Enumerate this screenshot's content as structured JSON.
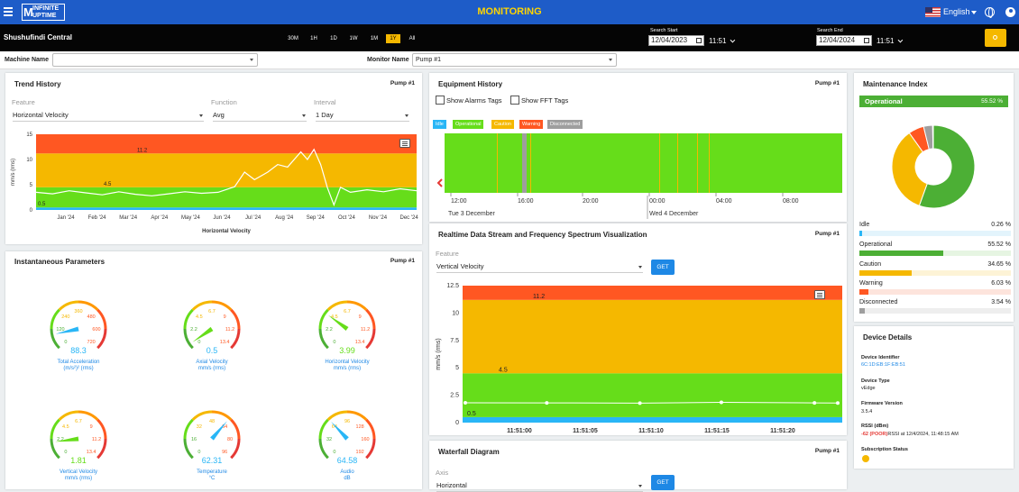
{
  "header": {
    "logo_line1": "INFINITE",
    "logo_line2": "UPTIME",
    "title": "MONITORING",
    "language": "English"
  },
  "toolbar": {
    "site": "Shushufindi Central",
    "ranges": [
      "30M",
      "1H",
      "1D",
      "1W",
      "1M",
      "1Y",
      "All"
    ],
    "active_range": "1Y",
    "search_start_label": "Search Start",
    "search_start_date": "12/04/2023",
    "search_start_time": "11:51",
    "search_end_label": "Search End",
    "search_end_date": "12/04/2024",
    "search_end_time": "11:51"
  },
  "filters": {
    "machine_label": "Machine Name",
    "machine_value": "",
    "monitor_label": "Monitor Name",
    "monitor_value": "Pump #1"
  },
  "trend": {
    "title": "Trend History",
    "tag": "Pump #1",
    "feature_label": "Feature",
    "feature_value": "Horizontal Velocity",
    "function_label": "Function",
    "function_value": "Avg",
    "interval_label": "Interval",
    "interval_value": "1 Day"
  },
  "instant": {
    "title": "Instantaneous Parameters",
    "tag": "Pump #1"
  },
  "gauges": [
    {
      "name": "Total Acceleration",
      "unit": "(m/s²)² (rms)",
      "value": "88.3",
      "ticks": [
        "0",
        "120",
        "240",
        "360",
        "480",
        "600",
        "720"
      ],
      "fraction": 0.12
    },
    {
      "name": "Axial Velocity",
      "unit": "mm/s (rms)",
      "value": "0.5",
      "ticks": [
        "0",
        "2.2",
        "4.5",
        "6.7",
        "9",
        "11.2",
        "13.4"
      ],
      "fraction": 0.04
    },
    {
      "name": "Horizontal Velocity",
      "unit": "mm/s (rms)",
      "value": "3.99",
      "ticks": [
        "0",
        "2.2",
        "4.5",
        "6.7",
        "9",
        "11.2",
        "13.4"
      ],
      "fraction": 0.3
    },
    {
      "name": "Vertical Velocity",
      "unit": "mm/s (rms)",
      "value": "1.81",
      "ticks": [
        "0",
        "2.2",
        "4.5",
        "6.7",
        "9",
        "11.2",
        "13.4"
      ],
      "fraction": 0.14
    },
    {
      "name": "Temperature",
      "unit": "°C",
      "value": "62.31",
      "ticks": [
        "0",
        "16",
        "32",
        "48",
        "64",
        "80",
        "96"
      ],
      "fraction": 0.65
    },
    {
      "name": "Audio",
      "unit": "dB",
      "value": "64.58",
      "ticks": [
        "0",
        "32",
        "64",
        "96",
        "128",
        "160",
        "192"
      ],
      "fraction": 0.34
    }
  ],
  "equipment": {
    "title": "Equipment History",
    "tag": "Pump #1",
    "show_alarms": "Show Alarms Tags",
    "show_fft": "Show FFT Tags",
    "legend": [
      {
        "label": "Idle",
        "color": "#29b6f6"
      },
      {
        "label": "Operational",
        "color": "#66dd1a"
      },
      {
        "label": "Caution",
        "color": "#f5b800"
      },
      {
        "label": "Warning",
        "color": "#ff5722"
      },
      {
        "label": "Disconnected",
        "color": "#9e9e9e"
      }
    ],
    "times": [
      "12:00",
      "16:00",
      "20:00",
      "00:00",
      "04:00",
      "08:00"
    ],
    "day1": "Tue 3 December",
    "day2": "Wed 4 December"
  },
  "realtime": {
    "title": "Realtime Data Stream and Frequency Spectrum Visualization",
    "tag": "Pump #1",
    "feature_label": "Feature",
    "feature_value": "Vertical Velocity",
    "get_label": "GET"
  },
  "waterfall": {
    "title": "Waterfall Diagram",
    "tag": "Pump #1",
    "axis_label": "Axis",
    "axis_value": "Horizontal",
    "get_label": "GET"
  },
  "maintenance": {
    "title": "Maintenance Index",
    "status": "Operational",
    "status_pct": "55.52 %",
    "rows": [
      {
        "label": "Idle",
        "pct": "0.26 %",
        "value": 0.26,
        "color": "#29b6f6",
        "track": "#e3f4fc"
      },
      {
        "label": "Operational",
        "pct": "55.52 %",
        "value": 55.52,
        "color": "#4caf35",
        "track": "#e6f5e2"
      },
      {
        "label": "Caution",
        "pct": "34.65 %",
        "value": 34.65,
        "color": "#f5b800",
        "track": "#fdf3d6"
      },
      {
        "label": "Warning",
        "pct": "6.03 %",
        "value": 6.03,
        "color": "#ff5722",
        "track": "#fde4dc"
      },
      {
        "label": "Disconnected",
        "pct": "3.54 %",
        "value": 3.54,
        "color": "#9e9e9e",
        "track": "#eeeeee"
      }
    ]
  },
  "device": {
    "title": "Device Details",
    "id_label": "Device Identifier",
    "id_value": "6C:1D:EB:1F:EB:51",
    "type_label": "Device Type",
    "type_value": "vEdge",
    "fw_label": "Firmware Version",
    "fw_value": "3.5.4",
    "rssi_label": "RSSI  (dBm)",
    "rssi_value": "-62 (POOR)",
    "rssi_suffix": "RSSI at 12/4/2024, 11:48:15 AM",
    "sub_label": "Subscription Status"
  },
  "chart_data": [
    {
      "type": "line",
      "title": "",
      "xlabel": "Horizontal Velocity",
      "ylabel": "mm/s (rms)",
      "ylim": [
        0,
        15
      ],
      "yticks": [
        0,
        5,
        10,
        15
      ],
      "categories": [
        "Jan '24",
        "Feb '24",
        "Mar '24",
        "Apr '24",
        "May '24",
        "Jun '24",
        "Jul '24",
        "Aug '24",
        "Sep '24",
        "Oct '24",
        "Nov '24",
        "Dec '24"
      ],
      "bands": [
        {
          "from": 0,
          "to": 0.5,
          "color": "#29b6f6"
        },
        {
          "from": 0.5,
          "to": 4.5,
          "color": "#66dd1a"
        },
        {
          "from": 4.5,
          "to": 11.2,
          "color": "#f5b800"
        },
        {
          "from": 11.2,
          "to": 15,
          "color": "#ff5722"
        }
      ],
      "band_labels": [
        "11.2",
        "4.5",
        "0.5"
      ],
      "x": [
        0,
        0.5,
        1,
        1.5,
        2,
        2.5,
        3,
        3.5,
        4,
        4.5,
        5,
        5.5,
        6,
        6.3,
        6.6,
        7,
        7.3,
        7.6,
        8,
        8.2,
        8.4,
        8.6,
        8.8,
        9,
        9.2,
        9.5,
        10,
        10.5,
        11,
        11.5
      ],
      "values": [
        3.5,
        3.2,
        3.8,
        3.4,
        3,
        3.6,
        3.1,
        2.8,
        3.2,
        3.6,
        3.3,
        3.5,
        4.6,
        7.5,
        6,
        7.5,
        9,
        8.5,
        11.5,
        10,
        12,
        9,
        4.5,
        1,
        4.5,
        3.5,
        4,
        3.6,
        4.2,
        3.8
      ]
    },
    {
      "type": "line",
      "title": "",
      "xlabel": "",
      "ylabel": "mm/s (rms)",
      "ylim": [
        0,
        12.5
      ],
      "yticks": [
        0,
        2.5,
        5,
        7.5,
        10,
        12.5
      ],
      "categories": [
        "11:51:00",
        "11:51:05",
        "11:51:10",
        "11:51:15",
        "11:51:20"
      ],
      "bands": [
        {
          "from": 0,
          "to": 0.5,
          "color": "#29b6f6"
        },
        {
          "from": 0.5,
          "to": 4.5,
          "color": "#66dd1a"
        },
        {
          "from": 4.5,
          "to": 11.2,
          "color": "#f5b800"
        },
        {
          "from": 11.2,
          "to": 12.5,
          "color": "#ff5722"
        }
      ],
      "band_labels": [
        "11.2",
        "4.5",
        "0.5"
      ],
      "x": [
        0,
        1.4,
        3,
        4.4,
        6,
        6.4
      ],
      "values": [
        1.81,
        1.8,
        1.78,
        1.85,
        1.8,
        1.79
      ]
    },
    {
      "type": "pie",
      "title": "",
      "categories": [
        "Operational",
        "Caution",
        "Warning",
        "Disconnected",
        "Idle"
      ],
      "values": [
        55.52,
        34.65,
        6.03,
        3.54,
        0.26
      ],
      "colors": [
        "#4caf35",
        "#f5b800",
        "#ff5722",
        "#9e9e9e",
        "#29b6f6"
      ]
    }
  ]
}
